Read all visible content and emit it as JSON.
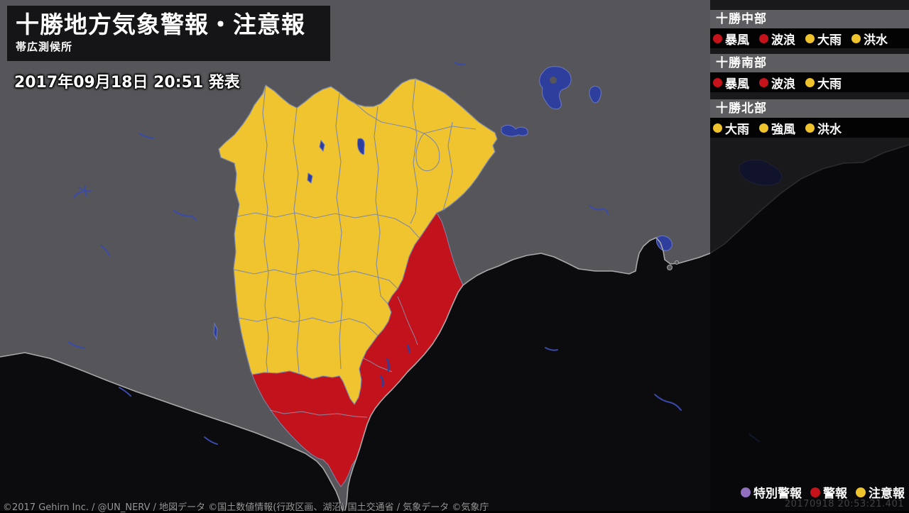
{
  "header": {
    "title": "十勝地方気象警報・注意報",
    "station": "帯広測候所",
    "issued": "2017年09月18日 20:51 発表"
  },
  "panels": [
    {
      "area": "十勝中部",
      "warnings": [
        {
          "label": "暴風",
          "level": "warning",
          "color": "#c5121b"
        },
        {
          "label": "波浪",
          "level": "warning",
          "color": "#c5121b"
        },
        {
          "label": "大雨",
          "level": "advisory",
          "color": "#efc32b"
        },
        {
          "label": "洪水",
          "level": "advisory",
          "color": "#efc32b"
        }
      ]
    },
    {
      "area": "十勝南部",
      "warnings": [
        {
          "label": "暴風",
          "level": "warning",
          "color": "#c5121b"
        },
        {
          "label": "波浪",
          "level": "warning",
          "color": "#c5121b"
        },
        {
          "label": "大雨",
          "level": "advisory",
          "color": "#efc32b"
        }
      ]
    },
    {
      "area": "十勝北部",
      "warnings": [
        {
          "label": "大雨",
          "level": "advisory",
          "color": "#efc32b"
        },
        {
          "label": "強風",
          "level": "advisory",
          "color": "#efc32b"
        },
        {
          "label": "洪水",
          "level": "advisory",
          "color": "#efc32b"
        }
      ]
    }
  ],
  "legend": {
    "items": [
      {
        "label": "特別警報",
        "color": "#8f6fbe"
      },
      {
        "label": "警報",
        "color": "#c5121b"
      },
      {
        "label": "注意報",
        "color": "#efc32b"
      }
    ],
    "timestamp": "20170918 20:53:21.401"
  },
  "footer": {
    "copyright": "©2017 Gehirn Inc. / @UN_NERV / 地図データ ©国土数値情報(行政区画、湖沼) 国土交通省 / 気象データ ©気象庁"
  },
  "map": {
    "colors": {
      "sea": "#0c0c0e",
      "land": "#56565a",
      "coastline": "#a8a8aa",
      "municipal_border": "#7b87ae",
      "advisory_fill": "#efc42f",
      "warning_fill": "#c2131c",
      "special_warning": "#8f6fbe",
      "lake": "#2e3e9c"
    }
  }
}
